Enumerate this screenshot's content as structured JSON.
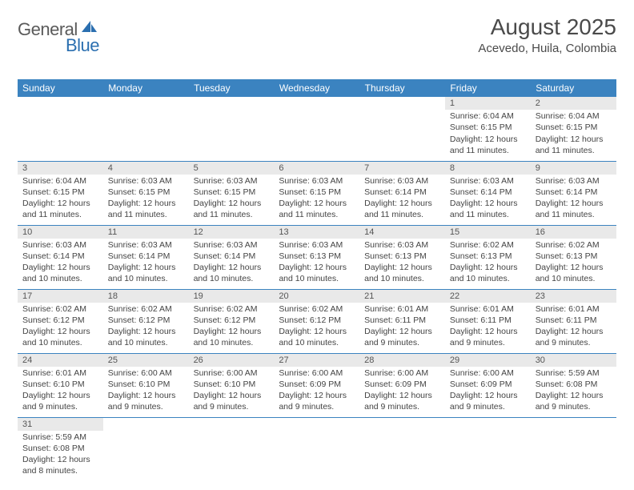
{
  "logo": {
    "part1": "General",
    "part2": "Blue"
  },
  "title": "August 2025",
  "location": "Acevedo, Huila, Colombia",
  "colors": {
    "header_bg": "#3b83c0",
    "header_text": "#ffffff",
    "daynum_bg": "#e9e9e9",
    "rule": "#3b83c0",
    "text": "#444444",
    "title_text": "#4a4a4a",
    "logo_dark": "#5a5a5a",
    "logo_blue": "#2b6fb0"
  },
  "weekdays": [
    "Sunday",
    "Monday",
    "Tuesday",
    "Wednesday",
    "Thursday",
    "Friday",
    "Saturday"
  ],
  "weeks": [
    [
      null,
      null,
      null,
      null,
      null,
      {
        "n": "1",
        "sr": "6:04 AM",
        "ss": "6:15 PM",
        "dl": "12 hours and 11 minutes."
      },
      {
        "n": "2",
        "sr": "6:04 AM",
        "ss": "6:15 PM",
        "dl": "12 hours and 11 minutes."
      }
    ],
    [
      {
        "n": "3",
        "sr": "6:04 AM",
        "ss": "6:15 PM",
        "dl": "12 hours and 11 minutes."
      },
      {
        "n": "4",
        "sr": "6:03 AM",
        "ss": "6:15 PM",
        "dl": "12 hours and 11 minutes."
      },
      {
        "n": "5",
        "sr": "6:03 AM",
        "ss": "6:15 PM",
        "dl": "12 hours and 11 minutes."
      },
      {
        "n": "6",
        "sr": "6:03 AM",
        "ss": "6:15 PM",
        "dl": "12 hours and 11 minutes."
      },
      {
        "n": "7",
        "sr": "6:03 AM",
        "ss": "6:14 PM",
        "dl": "12 hours and 11 minutes."
      },
      {
        "n": "8",
        "sr": "6:03 AM",
        "ss": "6:14 PM",
        "dl": "12 hours and 11 minutes."
      },
      {
        "n": "9",
        "sr": "6:03 AM",
        "ss": "6:14 PM",
        "dl": "12 hours and 11 minutes."
      }
    ],
    [
      {
        "n": "10",
        "sr": "6:03 AM",
        "ss": "6:14 PM",
        "dl": "12 hours and 10 minutes."
      },
      {
        "n": "11",
        "sr": "6:03 AM",
        "ss": "6:14 PM",
        "dl": "12 hours and 10 minutes."
      },
      {
        "n": "12",
        "sr": "6:03 AM",
        "ss": "6:14 PM",
        "dl": "12 hours and 10 minutes."
      },
      {
        "n": "13",
        "sr": "6:03 AM",
        "ss": "6:13 PM",
        "dl": "12 hours and 10 minutes."
      },
      {
        "n": "14",
        "sr": "6:03 AM",
        "ss": "6:13 PM",
        "dl": "12 hours and 10 minutes."
      },
      {
        "n": "15",
        "sr": "6:02 AM",
        "ss": "6:13 PM",
        "dl": "12 hours and 10 minutes."
      },
      {
        "n": "16",
        "sr": "6:02 AM",
        "ss": "6:13 PM",
        "dl": "12 hours and 10 minutes."
      }
    ],
    [
      {
        "n": "17",
        "sr": "6:02 AM",
        "ss": "6:12 PM",
        "dl": "12 hours and 10 minutes."
      },
      {
        "n": "18",
        "sr": "6:02 AM",
        "ss": "6:12 PM",
        "dl": "12 hours and 10 minutes."
      },
      {
        "n": "19",
        "sr": "6:02 AM",
        "ss": "6:12 PM",
        "dl": "12 hours and 10 minutes."
      },
      {
        "n": "20",
        "sr": "6:02 AM",
        "ss": "6:12 PM",
        "dl": "12 hours and 10 minutes."
      },
      {
        "n": "21",
        "sr": "6:01 AM",
        "ss": "6:11 PM",
        "dl": "12 hours and 9 minutes."
      },
      {
        "n": "22",
        "sr": "6:01 AM",
        "ss": "6:11 PM",
        "dl": "12 hours and 9 minutes."
      },
      {
        "n": "23",
        "sr": "6:01 AM",
        "ss": "6:11 PM",
        "dl": "12 hours and 9 minutes."
      }
    ],
    [
      {
        "n": "24",
        "sr": "6:01 AM",
        "ss": "6:10 PM",
        "dl": "12 hours and 9 minutes."
      },
      {
        "n": "25",
        "sr": "6:00 AM",
        "ss": "6:10 PM",
        "dl": "12 hours and 9 minutes."
      },
      {
        "n": "26",
        "sr": "6:00 AM",
        "ss": "6:10 PM",
        "dl": "12 hours and 9 minutes."
      },
      {
        "n": "27",
        "sr": "6:00 AM",
        "ss": "6:09 PM",
        "dl": "12 hours and 9 minutes."
      },
      {
        "n": "28",
        "sr": "6:00 AM",
        "ss": "6:09 PM",
        "dl": "12 hours and 9 minutes."
      },
      {
        "n": "29",
        "sr": "6:00 AM",
        "ss": "6:09 PM",
        "dl": "12 hours and 9 minutes."
      },
      {
        "n": "30",
        "sr": "5:59 AM",
        "ss": "6:08 PM",
        "dl": "12 hours and 9 minutes."
      }
    ],
    [
      {
        "n": "31",
        "sr": "5:59 AM",
        "ss": "6:08 PM",
        "dl": "12 hours and 8 minutes."
      },
      null,
      null,
      null,
      null,
      null,
      null
    ]
  ],
  "labels": {
    "sunrise": "Sunrise:",
    "sunset": "Sunset:",
    "daylight": "Daylight:"
  }
}
